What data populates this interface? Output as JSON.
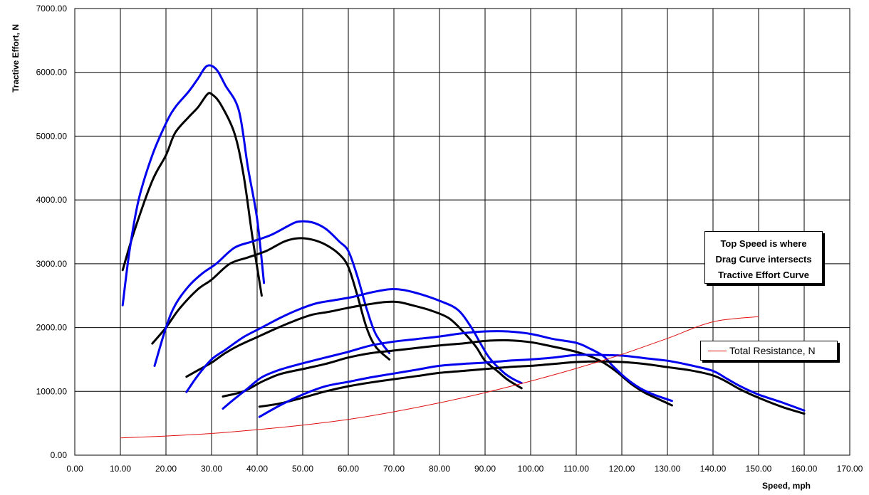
{
  "chart_data": {
    "type": "line",
    "xlabel": "Speed, mph",
    "ylabel": "Tractive Effort, N",
    "xlim": [
      0,
      170
    ],
    "ylim": [
      0,
      7000
    ],
    "x_ticks": [
      "0.00",
      "10.00",
      "20.00",
      "30.00",
      "40.00",
      "50.00",
      "60.00",
      "70.00",
      "80.00",
      "90.00",
      "100.00",
      "110.00",
      "120.00",
      "130.00",
      "140.00",
      "150.00",
      "160.00",
      "170.00"
    ],
    "y_ticks": [
      "0.00",
      "1000.00",
      "2000.00",
      "3000.00",
      "4000.00",
      "5000.00",
      "6000.00",
      "7000.00"
    ],
    "grid": true,
    "series": [
      {
        "color": "#000000",
        "points": [
          [
            10.5,
            2900
          ],
          [
            13,
            3500
          ],
          [
            17,
            4300
          ],
          [
            20,
            4700
          ],
          [
            22,
            5050
          ],
          [
            25,
            5300
          ],
          [
            27,
            5450
          ],
          [
            29,
            5650
          ],
          [
            30,
            5660
          ],
          [
            32,
            5500
          ],
          [
            35,
            5050
          ],
          [
            37,
            4400
          ],
          [
            39,
            3400
          ],
          [
            41,
            2500
          ]
        ]
      },
      {
        "color": "#0000ee",
        "points": [
          [
            10.5,
            2350
          ],
          [
            12,
            3200
          ],
          [
            14,
            4000
          ],
          [
            17,
            4700
          ],
          [
            20,
            5200
          ],
          [
            22,
            5450
          ],
          [
            25,
            5700
          ],
          [
            27,
            5900
          ],
          [
            29,
            6100
          ],
          [
            31,
            6050
          ],
          [
            33,
            5800
          ],
          [
            36,
            5400
          ],
          [
            38,
            4500
          ],
          [
            40,
            3700
          ],
          [
            41.5,
            2700
          ]
        ]
      },
      {
        "color": "#000000",
        "points": [
          [
            17,
            1750
          ],
          [
            20,
            2000
          ],
          [
            23,
            2300
          ],
          [
            27,
            2600
          ],
          [
            30,
            2750
          ],
          [
            34,
            3000
          ],
          [
            38,
            3100
          ],
          [
            42,
            3200
          ],
          [
            46,
            3350
          ],
          [
            49,
            3400
          ],
          [
            52,
            3380
          ],
          [
            55,
            3300
          ],
          [
            58,
            3150
          ],
          [
            60,
            2950
          ],
          [
            62,
            2500
          ],
          [
            64,
            2000
          ],
          [
            66,
            1700
          ],
          [
            69,
            1500
          ]
        ]
      },
      {
        "color": "#0000ee",
        "points": [
          [
            17.5,
            1400
          ],
          [
            20,
            2000
          ],
          [
            22,
            2350
          ],
          [
            25,
            2650
          ],
          [
            28,
            2850
          ],
          [
            31,
            3000
          ],
          [
            35,
            3250
          ],
          [
            39,
            3350
          ],
          [
            43,
            3450
          ],
          [
            47,
            3600
          ],
          [
            49,
            3660
          ],
          [
            52,
            3650
          ],
          [
            55,
            3550
          ],
          [
            58,
            3350
          ],
          [
            60,
            3200
          ],
          [
            62,
            2800
          ],
          [
            64,
            2300
          ],
          [
            66,
            1900
          ],
          [
            69,
            1600
          ]
        ]
      },
      {
        "color": "#000000",
        "points": [
          [
            24.5,
            1230
          ],
          [
            27,
            1330
          ],
          [
            30,
            1450
          ],
          [
            33,
            1600
          ],
          [
            36,
            1720
          ],
          [
            40,
            1850
          ],
          [
            44,
            1980
          ],
          [
            48,
            2100
          ],
          [
            52,
            2200
          ],
          [
            56,
            2250
          ],
          [
            60,
            2310
          ],
          [
            64,
            2360
          ],
          [
            68,
            2400
          ],
          [
            71,
            2400
          ],
          [
            74,
            2350
          ],
          [
            78,
            2270
          ],
          [
            82,
            2150
          ],
          [
            85,
            1950
          ],
          [
            88,
            1700
          ],
          [
            90,
            1480
          ],
          [
            93,
            1300
          ],
          [
            95,
            1180
          ],
          [
            98,
            1050
          ]
        ]
      },
      {
        "color": "#0000ee",
        "points": [
          [
            24.5,
            990
          ],
          [
            27,
            1250
          ],
          [
            30,
            1500
          ],
          [
            33,
            1650
          ],
          [
            37,
            1850
          ],
          [
            41,
            2000
          ],
          [
            45,
            2150
          ],
          [
            49,
            2280
          ],
          [
            53,
            2380
          ],
          [
            57,
            2430
          ],
          [
            61,
            2480
          ],
          [
            65,
            2550
          ],
          [
            69,
            2600
          ],
          [
            72,
            2590
          ],
          [
            76,
            2520
          ],
          [
            80,
            2420
          ],
          [
            84,
            2280
          ],
          [
            87,
            2000
          ],
          [
            89,
            1750
          ],
          [
            91,
            1520
          ],
          [
            94,
            1300
          ],
          [
            96,
            1200
          ],
          [
            98,
            1130
          ]
        ]
      },
      {
        "color": "#000000",
        "points": [
          [
            32.5,
            920
          ],
          [
            37,
            1000
          ],
          [
            41,
            1150
          ],
          [
            45,
            1270
          ],
          [
            50,
            1350
          ],
          [
            55,
            1430
          ],
          [
            60,
            1530
          ],
          [
            65,
            1600
          ],
          [
            70,
            1640
          ],
          [
            75,
            1680
          ],
          [
            80,
            1720
          ],
          [
            85,
            1750
          ],
          [
            90,
            1790
          ],
          [
            95,
            1800
          ],
          [
            100,
            1770
          ],
          [
            105,
            1700
          ],
          [
            110,
            1620
          ],
          [
            113,
            1550
          ],
          [
            116,
            1450
          ],
          [
            119,
            1300
          ],
          [
            122,
            1120
          ],
          [
            125,
            980
          ],
          [
            128,
            880
          ],
          [
            131,
            780
          ]
        ]
      },
      {
        "color": "#0000ee",
        "points": [
          [
            32.5,
            730
          ],
          [
            35,
            880
          ],
          [
            38,
            1050
          ],
          [
            41,
            1220
          ],
          [
            45,
            1340
          ],
          [
            50,
            1440
          ],
          [
            55,
            1530
          ],
          [
            60,
            1620
          ],
          [
            65,
            1720
          ],
          [
            70,
            1780
          ],
          [
            75,
            1820
          ],
          [
            80,
            1860
          ],
          [
            85,
            1910
          ],
          [
            90,
            1940
          ],
          [
            95,
            1940
          ],
          [
            100,
            1900
          ],
          [
            105,
            1820
          ],
          [
            110,
            1760
          ],
          [
            113,
            1670
          ],
          [
            116,
            1550
          ],
          [
            118,
            1400
          ],
          [
            121,
            1200
          ],
          [
            124,
            1050
          ],
          [
            127,
            950
          ],
          [
            131,
            850
          ]
        ]
      },
      {
        "color": "#000000",
        "points": [
          [
            40.5,
            760
          ],
          [
            45,
            810
          ],
          [
            50,
            900
          ],
          [
            55,
            1000
          ],
          [
            60,
            1080
          ],
          [
            65,
            1140
          ],
          [
            70,
            1190
          ],
          [
            75,
            1240
          ],
          [
            80,
            1290
          ],
          [
            85,
            1320
          ],
          [
            90,
            1350
          ],
          [
            95,
            1380
          ],
          [
            100,
            1400
          ],
          [
            105,
            1430
          ],
          [
            110,
            1460
          ],
          [
            115,
            1470
          ],
          [
            120,
            1460
          ],
          [
            125,
            1430
          ],
          [
            130,
            1380
          ],
          [
            135,
            1330
          ],
          [
            140,
            1250
          ],
          [
            143,
            1150
          ],
          [
            146,
            1030
          ],
          [
            150,
            900
          ],
          [
            155,
            760
          ],
          [
            160,
            650
          ]
        ]
      },
      {
        "color": "#0000ee",
        "points": [
          [
            40.5,
            600
          ],
          [
            45,
            780
          ],
          [
            50,
            950
          ],
          [
            55,
            1080
          ],
          [
            60,
            1150
          ],
          [
            65,
            1220
          ],
          [
            70,
            1280
          ],
          [
            75,
            1340
          ],
          [
            80,
            1400
          ],
          [
            85,
            1430
          ],
          [
            90,
            1450
          ],
          [
            95,
            1480
          ],
          [
            100,
            1500
          ],
          [
            105,
            1530
          ],
          [
            110,
            1570
          ],
          [
            115,
            1570
          ],
          [
            120,
            1560
          ],
          [
            125,
            1520
          ],
          [
            130,
            1480
          ],
          [
            135,
            1410
          ],
          [
            140,
            1320
          ],
          [
            143,
            1200
          ],
          [
            146,
            1080
          ],
          [
            150,
            950
          ],
          [
            155,
            830
          ],
          [
            160,
            700
          ]
        ]
      },
      {
        "name": "Total Resistance, N",
        "color": "#e01010",
        "points": [
          [
            10,
            270
          ],
          [
            20,
            300
          ],
          [
            30,
            340
          ],
          [
            40,
            400
          ],
          [
            50,
            470
          ],
          [
            60,
            560
          ],
          [
            70,
            680
          ],
          [
            80,
            820
          ],
          [
            90,
            980
          ],
          [
            100,
            1160
          ],
          [
            110,
            1360
          ],
          [
            120,
            1580
          ],
          [
            130,
            1830
          ],
          [
            140,
            2090
          ],
          [
            150,
            2170
          ]
        ]
      }
    ],
    "annotation": [
      "Top Speed is where",
      "Drag Curve intersects",
      "Tractive Effort Curve"
    ]
  }
}
